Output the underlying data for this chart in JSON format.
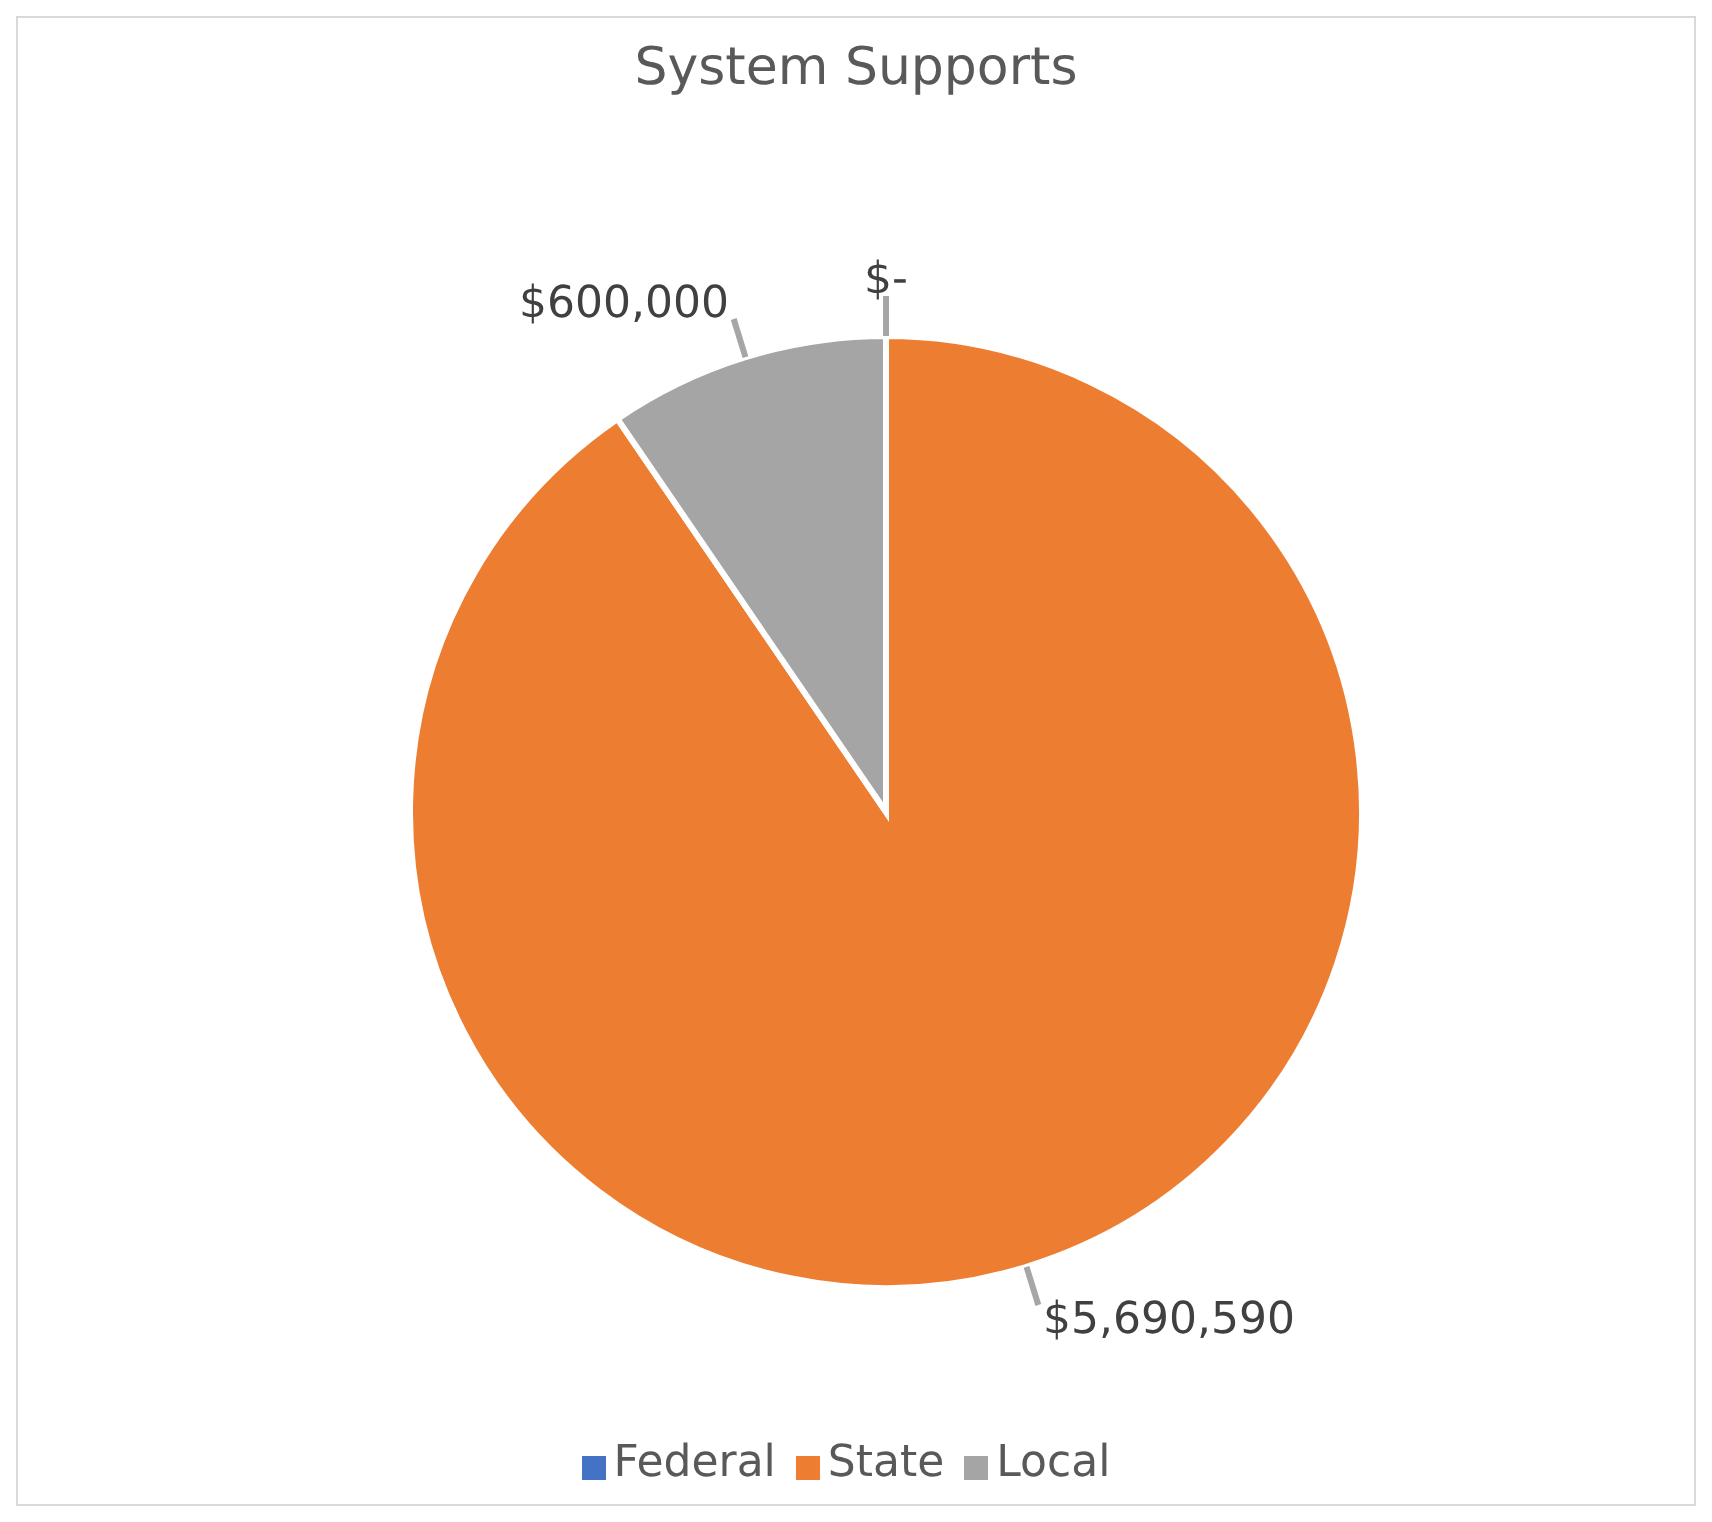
{
  "chart_data": {
    "type": "pie",
    "title": "System Supports",
    "categories": [
      "Federal",
      "State",
      "Local"
    ],
    "values": [
      0,
      5690590,
      600000
    ],
    "colors": [
      "#4472c4",
      "#ed7d31",
      "#a5a5a5"
    ],
    "value_labels": [
      "$-",
      "$5,690,590",
      "$600,000"
    ],
    "legend": "bottom"
  }
}
